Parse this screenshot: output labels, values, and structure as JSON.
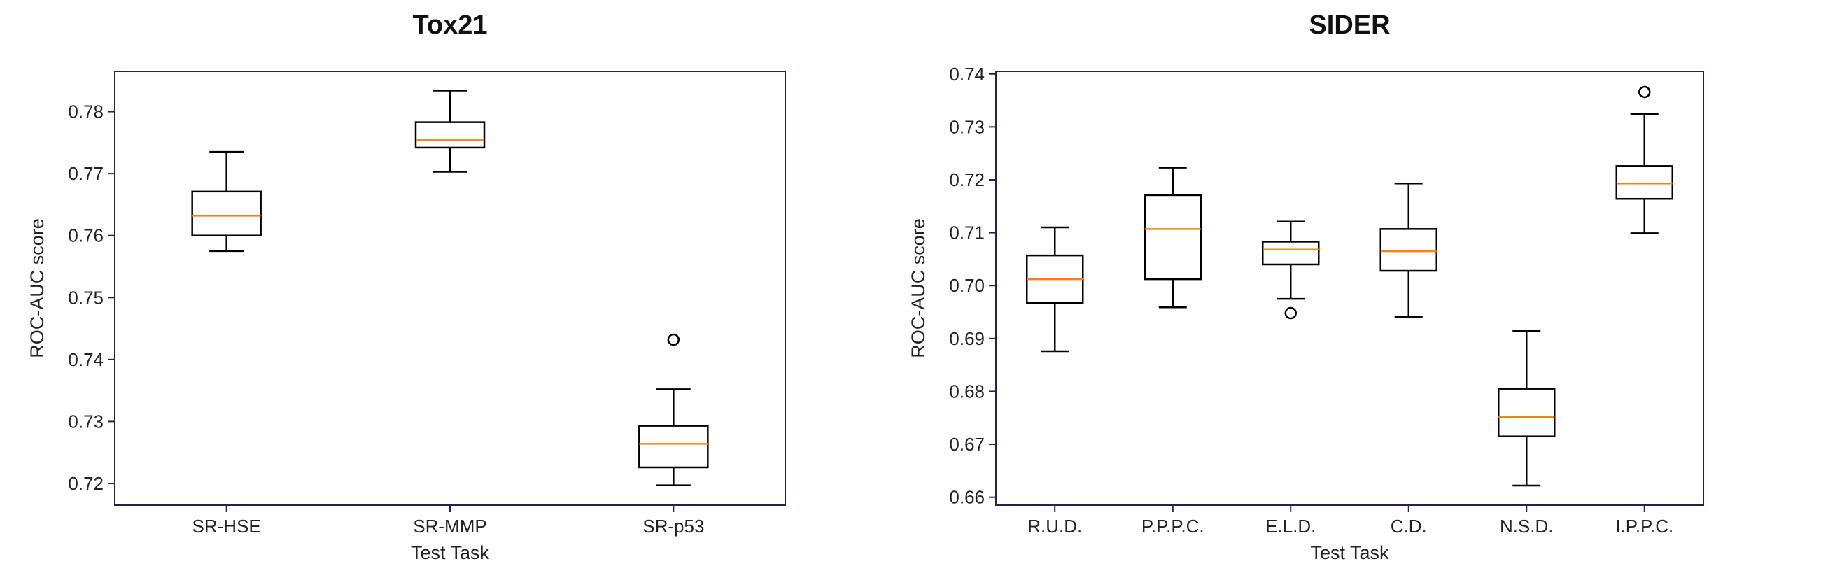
{
  "chart_data": [
    {
      "type": "box",
      "title": "Tox21",
      "xlabel": "Test Task",
      "ylabel": "ROC-AUC score",
      "ylim": [
        0.7165,
        0.7865
      ],
      "yticks": [
        0.72,
        0.73,
        0.74,
        0.75,
        0.76,
        0.77,
        0.78
      ],
      "categories": [
        "SR-HSE",
        "SR-MMP",
        "SR-p53"
      ],
      "boxes": [
        {
          "whisker_low": 0.7575,
          "q1": 0.76,
          "median": 0.7632,
          "q3": 0.7671,
          "whisker_high": 0.7735,
          "outliers": []
        },
        {
          "whisker_low": 0.7703,
          "q1": 0.7742,
          "median": 0.7754,
          "q3": 0.7783,
          "whisker_high": 0.7834,
          "outliers": []
        },
        {
          "whisker_low": 0.7197,
          "q1": 0.7226,
          "median": 0.7264,
          "q3": 0.7293,
          "whisker_high": 0.7352,
          "outliers": [
            0.7432
          ]
        }
      ],
      "colors": {
        "box": "#000000",
        "median": "#ff7f0e",
        "frame": "#2a1f4e"
      }
    },
    {
      "type": "box",
      "title": "SIDER",
      "xlabel": "Test Task",
      "ylabel": "ROC-AUC score",
      "ylim": [
        0.6585,
        0.7405
      ],
      "yticks": [
        0.66,
        0.67,
        0.68,
        0.69,
        0.7,
        0.71,
        0.72,
        0.73,
        0.74
      ],
      "categories": [
        "R.U.D.",
        "P.P.P.C.",
        "E.L.D.",
        "C.D.",
        "N.S.D.",
        "I.P.P.C."
      ],
      "boxes": [
        {
          "whisker_low": 0.6876,
          "q1": 0.6967,
          "median": 0.7012,
          "q3": 0.7057,
          "whisker_high": 0.711,
          "outliers": []
        },
        {
          "whisker_low": 0.6959,
          "q1": 0.7012,
          "median": 0.7107,
          "q3": 0.7171,
          "whisker_high": 0.7223,
          "outliers": []
        },
        {
          "whisker_low": 0.6975,
          "q1": 0.704,
          "median": 0.7068,
          "q3": 0.7083,
          "whisker_high": 0.7121,
          "outliers": [
            0.6948
          ]
        },
        {
          "whisker_low": 0.6941,
          "q1": 0.7028,
          "median": 0.7065,
          "q3": 0.7107,
          "whisker_high": 0.7193,
          "outliers": []
        },
        {
          "whisker_low": 0.6622,
          "q1": 0.6715,
          "median": 0.6752,
          "q3": 0.6805,
          "whisker_high": 0.6914,
          "outliers": []
        },
        {
          "whisker_low": 0.7099,
          "q1": 0.7164,
          "median": 0.7193,
          "q3": 0.7226,
          "whisker_high": 0.7324,
          "outliers": [
            0.7366
          ]
        }
      ],
      "colors": {
        "box": "#000000",
        "median": "#ff7f0e",
        "frame": "#2a1f4e"
      }
    }
  ]
}
